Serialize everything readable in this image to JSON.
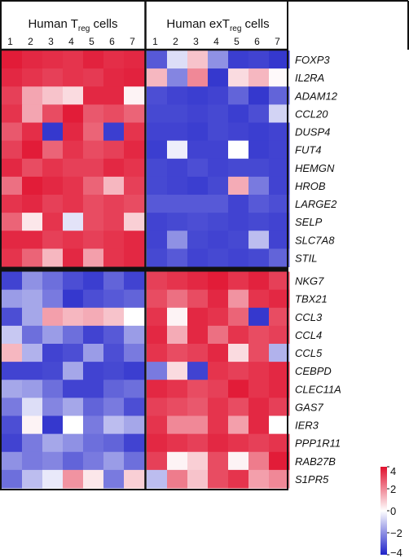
{
  "chart_data": {
    "type": "heatmap",
    "groups": [
      {
        "title_main": "Human T",
        "title_sub": "reg",
        "title_tail": " cells",
        "columns": [
          "1",
          "2",
          "3",
          "4",
          "5",
          "6",
          "7"
        ]
      },
      {
        "title_main": "Human exT",
        "title_sub": "reg",
        "title_tail": " cells",
        "columns": [
          "1",
          "2",
          "3",
          "4",
          "5",
          "6",
          "7"
        ]
      }
    ],
    "genes": [
      "FOXP3",
      "IL2RA",
      "ADAM12",
      "CCL20",
      "DUSP4",
      "FUT4",
      "HEMGN",
      "HROB",
      "LARGE2",
      "SELP",
      "SLC7A8",
      "STIL",
      "NKG7",
      "TBX21",
      "CCL3",
      "CCL4",
      "CCL5",
      "CEBPD",
      "CLEC11A",
      "GAS7",
      "IER3",
      "PPP1R11",
      "RAB27B",
      "S1PR5"
    ],
    "row_split_after": 12,
    "values": [
      [
        3.8,
        3.6,
        3.5,
        3.4,
        3.7,
        3.5,
        3.6,
        -3.0,
        -0.6,
        1.0,
        -2.0,
        -3.5,
        -3.4,
        -3.6
      ],
      [
        3.6,
        3.4,
        3.2,
        3.4,
        3.3,
        3.6,
        3.7,
        1.2,
        -2.2,
        2.0,
        -3.6,
        0.6,
        1.2,
        0.1
      ],
      [
        3.2,
        1.5,
        1.0,
        0.6,
        3.6,
        3.6,
        0.2,
        -3.2,
        -3.4,
        -3.5,
        -3.4,
        -2.8,
        -3.6,
        -2.8
      ],
      [
        3.4,
        1.5,
        3.0,
        3.8,
        2.8,
        3.0,
        2.6,
        -3.3,
        -3.3,
        -3.4,
        -3.3,
        -3.5,
        -3.2,
        -0.8
      ],
      [
        2.8,
        3.5,
        -3.6,
        3.6,
        2.6,
        -3.5,
        3.4,
        -3.4,
        -3.4,
        -3.5,
        -3.3,
        -3.4,
        -3.5,
        -3.4
      ],
      [
        3.2,
        3.8,
        2.6,
        3.4,
        3.0,
        3.2,
        3.6,
        -3.5,
        -0.3,
        -3.4,
        -3.4,
        0.0,
        -3.5,
        -3.4
      ],
      [
        3.6,
        3.0,
        3.4,
        3.2,
        3.2,
        3.6,
        3.4,
        -3.3,
        -3.4,
        -3.2,
        -3.4,
        -3.3,
        -3.3,
        -3.4
      ],
      [
        2.4,
        3.8,
        3.6,
        3.4,
        2.6,
        1.2,
        3.2,
        -3.3,
        -3.4,
        -3.5,
        -3.3,
        1.4,
        -2.4,
        -3.4
      ],
      [
        3.4,
        3.6,
        3.2,
        3.4,
        3.0,
        3.2,
        3.0,
        -3.0,
        -3.0,
        -3.0,
        -3.0,
        -3.4,
        -3.0,
        -3.2
      ],
      [
        2.6,
        0.4,
        3.4,
        -0.5,
        3.0,
        3.2,
        0.8,
        -3.4,
        -3.3,
        -3.2,
        -3.3,
        -3.4,
        -3.3,
        -3.4
      ],
      [
        3.6,
        3.6,
        3.2,
        3.4,
        3.2,
        3.4,
        3.6,
        -3.4,
        -2.0,
        -3.3,
        -3.4,
        -3.3,
        -1.2,
        -3.4
      ],
      [
        3.4,
        2.6,
        1.2,
        3.6,
        1.6,
        3.4,
        3.6,
        -3.3,
        -3.0,
        -3.4,
        -3.3,
        -3.4,
        -3.3,
        -2.8
      ],
      [
        -3.4,
        -2.0,
        -2.6,
        -3.2,
        -3.5,
        -2.8,
        -3.4,
        3.2,
        3.4,
        3.6,
        3.8,
        3.4,
        3.7,
        3.2
      ],
      [
        -1.8,
        -1.6,
        -2.4,
        -3.6,
        -3.2,
        -3.0,
        -2.8,
        3.0,
        2.4,
        3.0,
        3.6,
        1.8,
        3.4,
        3.6
      ],
      [
        -3.2,
        -1.6,
        1.6,
        1.2,
        1.4,
        1.0,
        0.0,
        3.4,
        0.2,
        3.6,
        3.4,
        2.6,
        -3.6,
        3.0
      ],
      [
        -1.0,
        -2.6,
        -1.8,
        -2.6,
        -3.4,
        -3.0,
        -1.8,
        3.6,
        1.4,
        3.6,
        2.4,
        3.4,
        3.0,
        3.2
      ],
      [
        1.2,
        -1.4,
        -3.4,
        -3.2,
        -1.8,
        -3.2,
        -2.4,
        3.4,
        3.0,
        3.2,
        3.6,
        0.6,
        3.0,
        -1.4
      ],
      [
        -3.4,
        -3.4,
        -3.3,
        -1.6,
        -3.4,
        -3.3,
        -3.5,
        -2.4,
        0.6,
        -3.4,
        3.4,
        3.2,
        3.4,
        3.6
      ],
      [
        -1.6,
        -1.8,
        -2.6,
        -3.4,
        -3.4,
        -2.8,
        -2.6,
        3.6,
        3.4,
        3.0,
        3.2,
        3.8,
        3.4,
        3.6
      ],
      [
        -2.4,
        -0.6,
        -2.2,
        -1.6,
        -2.8,
        -2.4,
        -3.2,
        3.2,
        3.0,
        2.8,
        3.4,
        3.0,
        3.6,
        3.2
      ],
      [
        -3.2,
        0.2,
        -3.6,
        0.0,
        -2.4,
        -1.2,
        -1.6,
        3.4,
        2.0,
        2.0,
        3.4,
        1.6,
        3.6,
        0.0
      ],
      [
        -3.4,
        -2.4,
        -1.6,
        -2.0,
        -2.6,
        -2.8,
        -3.4,
        3.6,
        3.4,
        3.2,
        3.6,
        3.4,
        3.2,
        3.4
      ],
      [
        -2.0,
        -2.4,
        -2.2,
        -2.8,
        -2.4,
        -1.8,
        -2.6,
        3.2,
        0.2,
        0.8,
        3.0,
        0.2,
        2.2,
        3.8
      ],
      [
        -2.6,
        -1.2,
        -0.4,
        1.8,
        0.4,
        -2.4,
        0.8,
        -1.2,
        2.2,
        1.0,
        3.0,
        3.4,
        1.6,
        2.0
      ]
    ],
    "color_scale": {
      "min": -4,
      "max": 4,
      "low": "#1f22c9",
      "mid": "#ffffff",
      "high": "#e0102e"
    },
    "colorbar_ticks": [
      "4",
      "2",
      "0",
      "−2",
      "−4"
    ],
    "colorbar_values": [
      4,
      2,
      0,
      -2,
      -4
    ]
  }
}
